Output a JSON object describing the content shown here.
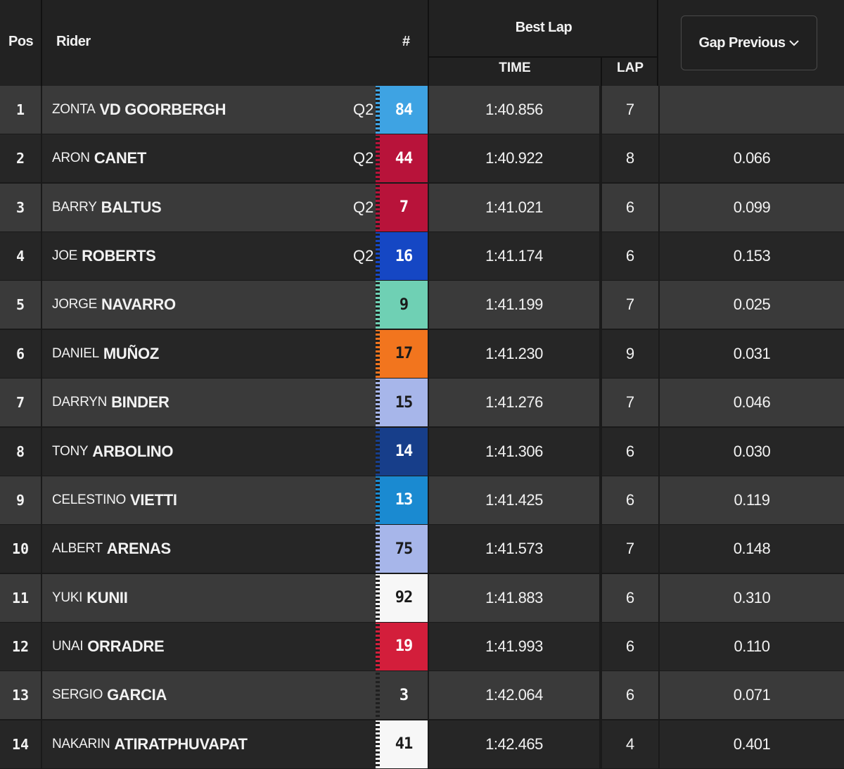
{
  "header": {
    "pos": "Pos",
    "rider": "Rider",
    "number": "#",
    "best_lap": "Best Lap",
    "time": "TIME",
    "lap": "LAP",
    "gap_button": "Gap Previous"
  },
  "rows": [
    {
      "pos": "1",
      "first": "ZONTA",
      "last": "VD GOORBERGH",
      "q2": "Q2",
      "flag": "P",
      "num": "84",
      "num_bg": "#3ea3e3",
      "num_fg": "#ffffff",
      "time": "1:40.856",
      "lap": "7",
      "gap": ""
    },
    {
      "pos": "2",
      "first": "ARON",
      "last": "CANET",
      "q2": "Q2",
      "flag": "P",
      "num": "44",
      "num_bg": "#b8133a",
      "num_fg": "#ffffff",
      "time": "1:40.922",
      "lap": "8",
      "gap": "0.066"
    },
    {
      "pos": "3",
      "first": "BARRY",
      "last": "BALTUS",
      "q2": "Q2",
      "flag": "P",
      "num": "7",
      "num_bg": "#b8133a",
      "num_fg": "#ffffff",
      "time": "1:41.021",
      "lap": "6",
      "gap": "0.099"
    },
    {
      "pos": "4",
      "first": "JOE",
      "last": "ROBERTS",
      "q2": "Q2",
      "flag": "P",
      "num": "16",
      "num_bg": "#1547c4",
      "num_fg": "#ffffff",
      "time": "1:41.174",
      "lap": "6",
      "gap": "0.153"
    },
    {
      "pos": "5",
      "first": "JORGE",
      "last": "NAVARRO",
      "q2": "",
      "flag": "P",
      "num": "9",
      "num_bg": "#6fd0b4",
      "num_fg": "#1a1a1a",
      "time": "1:41.199",
      "lap": "7",
      "gap": "0.025"
    },
    {
      "pos": "6",
      "first": "DANIEL",
      "last": "MUÑOZ",
      "q2": "",
      "flag": "P",
      "num": "17",
      "num_bg": "#f2751e",
      "num_fg": "#1a1a1a",
      "time": "1:41.230",
      "lap": "9",
      "gap": "0.031"
    },
    {
      "pos": "7",
      "first": "DARRYN",
      "last": "BINDER",
      "q2": "",
      "flag": "P",
      "num": "15",
      "num_bg": "#a7b6ea",
      "num_fg": "#1a1a1a",
      "time": "1:41.276",
      "lap": "7",
      "gap": "0.046"
    },
    {
      "pos": "8",
      "first": "TONY",
      "last": "ARBOLINO",
      "q2": "",
      "flag": "P",
      "num": "14",
      "num_bg": "#173e8a",
      "num_fg": "#ffffff",
      "time": "1:41.306",
      "lap": "6",
      "gap": "0.030"
    },
    {
      "pos": "9",
      "first": "CELESTINO",
      "last": "VIETTI",
      "q2": "",
      "flag": "P",
      "num": "13",
      "num_bg": "#1a8ad1",
      "num_fg": "#ffffff",
      "time": "1:41.425",
      "lap": "6",
      "gap": "0.119"
    },
    {
      "pos": "10",
      "first": "ALBERT",
      "last": "ARENAS",
      "q2": "",
      "flag": "P",
      "num": "75",
      "num_bg": "#a7b6ea",
      "num_fg": "#1a1a1a",
      "time": "1:41.573",
      "lap": "7",
      "gap": "0.148"
    },
    {
      "pos": "11",
      "first": "YUKI",
      "last": "KUNII",
      "q2": "",
      "flag": "P",
      "num": "92",
      "num_bg": "#f7f7f7",
      "num_fg": "#1a1a1a",
      "time": "1:41.883",
      "lap": "6",
      "gap": "0.310"
    },
    {
      "pos": "12",
      "first": "UNAI",
      "last": "ORRADRE",
      "q2": "",
      "flag": "P",
      "num": "19",
      "num_bg": "#d31e3b",
      "num_fg": "#ffffff",
      "time": "1:41.993",
      "lap": "6",
      "gap": "0.110"
    },
    {
      "pos": "13",
      "first": "SERGIO",
      "last": "GARCIA",
      "q2": "",
      "flag": "P",
      "num": "3",
      "num_bg": "#3a3a3a",
      "num_fg": "#ffffff",
      "time": "1:42.064",
      "lap": "6",
      "gap": "0.071"
    },
    {
      "pos": "14",
      "first": "NAKARIN",
      "last": "ATIRATPHUVAPAT",
      "q2": "",
      "flag": "P",
      "num": "41",
      "num_bg": "#f7f7f7",
      "num_fg": "#1a1a1a",
      "time": "1:42.465",
      "lap": "4",
      "gap": "0.401"
    }
  ]
}
